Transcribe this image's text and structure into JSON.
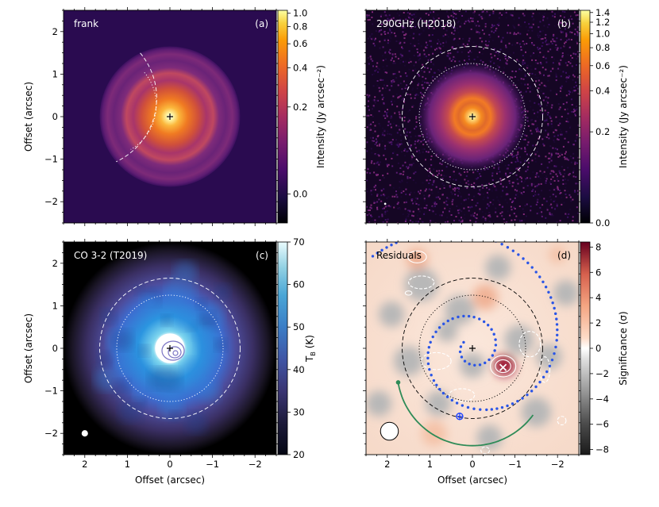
{
  "chart_data": [
    {
      "type": "heatmap",
      "panel_label": "(a)",
      "title": "frank",
      "xlabel": "",
      "ylabel": "Offset (arcsec)",
      "xlim": [
        2.5,
        -2.5
      ],
      "ylim": [
        -2.5,
        2.5
      ],
      "x_ticks": [],
      "y_ticks": [
        -2,
        -1,
        0,
        1,
        2
      ],
      "colorbar": {
        "label": "Intensity (Jy arcsec⁻²)",
        "scale": "asinh",
        "range": [
          -0.05,
          1.05
        ],
        "ticks": [
          0.0,
          0.2,
          0.4,
          0.6,
          0.8,
          1.0
        ],
        "tick_labels": [
          "0.0",
          "0.2",
          "0.4",
          "0.6",
          "0.8",
          "1.0"
        ],
        "colormap": "inferno"
      },
      "image": {
        "disk_radius_arcsec": 1.65,
        "rings_arcsec": [
          1.05,
          1.5
        ]
      },
      "overlays": [
        {
          "kind": "arc",
          "style": "dashed",
          "radius_arcsec": 1.65,
          "pa_from_deg": 205,
          "pa_to_deg": 310
        },
        {
          "kind": "arc",
          "style": "dotted",
          "radius_arcsec": 1.2,
          "pa_from_deg": 210,
          "pa_to_deg": 310
        },
        {
          "kind": "marker",
          "symbol": "+",
          "x": 0,
          "y": 0
        }
      ]
    },
    {
      "type": "heatmap",
      "panel_label": "(b)",
      "title": "290GHz (H2018)",
      "xlabel": "",
      "ylabel": "",
      "xlim": [
        2.5,
        -2.5
      ],
      "ylim": [
        -2.5,
        2.5
      ],
      "x_ticks": [],
      "y_ticks": [],
      "colorbar": {
        "label": "Intensity (Jy arcsec⁻²)",
        "scale": "asinh",
        "range": [
          0.0,
          1.45
        ],
        "ticks": [
          0.0,
          0.2,
          0.4,
          0.6,
          0.8,
          1.0,
          1.2,
          1.4
        ],
        "tick_labels": [
          "0.0",
          "0.2",
          "0.4",
          "0.6",
          "0.8",
          "1.0",
          "1.2",
          "1.4"
        ],
        "colormap": "inferno"
      },
      "image": {
        "disk_radius_arcsec": 1.3,
        "noise": true
      },
      "overlays": [
        {
          "kind": "circle",
          "style": "dashed",
          "radius_arcsec": 1.65
        },
        {
          "kind": "circle",
          "style": "dotted",
          "radius_arcsec": 1.25
        },
        {
          "kind": "marker",
          "symbol": "+",
          "x": 0,
          "y": 0
        },
        {
          "kind": "beam",
          "x": 2.05,
          "y": -2.05,
          "diameter_arcsec": 0.05
        }
      ]
    },
    {
      "type": "heatmap",
      "panel_label": "(c)",
      "title": "CO 3-2 (T2019)",
      "xlabel": "Offset (arcsec)",
      "ylabel": "Offset (arcsec)",
      "xlim": [
        2.5,
        -2.5
      ],
      "ylim": [
        -2.5,
        2.5
      ],
      "x_ticks": [
        2,
        1,
        0,
        -1,
        -2
      ],
      "y_ticks": [
        -2,
        -1,
        0,
        1,
        2
      ],
      "colorbar": {
        "label": "T_B (K)",
        "scale": "linear",
        "range": [
          20,
          70
        ],
        "ticks": [
          20,
          30,
          40,
          50,
          60,
          70
        ],
        "tick_labels": [
          "20",
          "30",
          "40",
          "50",
          "60",
          "70"
        ],
        "colormap": "ice"
      },
      "image": {
        "emission_radius_arcsec": 2.5,
        "core_radius_arcsec": 0.35
      },
      "overlays": [
        {
          "kind": "circle",
          "style": "dashed",
          "radius_arcsec": 1.65
        },
        {
          "kind": "circle",
          "style": "dotted",
          "radius_arcsec": 1.25
        },
        {
          "kind": "marker",
          "symbol": "+",
          "x": 0,
          "y": 0
        },
        {
          "kind": "beam",
          "x": 2.0,
          "y": -2.0,
          "diameter_arcsec": 0.15
        }
      ]
    },
    {
      "type": "heatmap",
      "panel_label": "(d)",
      "title": "Residuals",
      "xlabel": "Offset (arcsec)",
      "ylabel": "",
      "xlim": [
        2.5,
        -2.5
      ],
      "ylim": [
        -2.5,
        2.5
      ],
      "x_ticks": [
        2,
        1,
        0,
        -1,
        -2
      ],
      "y_ticks": [],
      "colorbar": {
        "label": "Significance (σ)",
        "scale": "linear",
        "range": [
          -8.4,
          8.4
        ],
        "ticks": [
          -8,
          -6,
          -4,
          -2,
          0,
          2,
          4,
          6,
          8
        ],
        "tick_labels": [
          "−8",
          "−6",
          "−4",
          "−2",
          "0",
          "2",
          "4",
          "6",
          "8"
        ],
        "colormap": "RdGy_r"
      },
      "overlays": [
        {
          "kind": "circle",
          "style": "dashed",
          "color": "#000000",
          "radius_arcsec": 1.65
        },
        {
          "kind": "circle",
          "style": "dotted",
          "color": "#000000",
          "radius_arcsec": 1.25
        },
        {
          "kind": "marker",
          "symbol": "+",
          "x": 0,
          "y": 0
        },
        {
          "kind": "marker",
          "symbol": "x",
          "color": "#ffffff",
          "x": -0.72,
          "y": -0.45
        },
        {
          "kind": "marker",
          "symbol": "circle-plus",
          "color": "#2045ff",
          "x": 0.3,
          "y": -1.6
        },
        {
          "kind": "beam",
          "x": 1.95,
          "y": -1.95,
          "diameter_arcsec": 0.42
        },
        {
          "kind": "spiral",
          "style": "dotted",
          "color": "#2a55e6"
        },
        {
          "kind": "arc",
          "style": "solid",
          "color": "#2e8b57"
        }
      ]
    }
  ]
}
